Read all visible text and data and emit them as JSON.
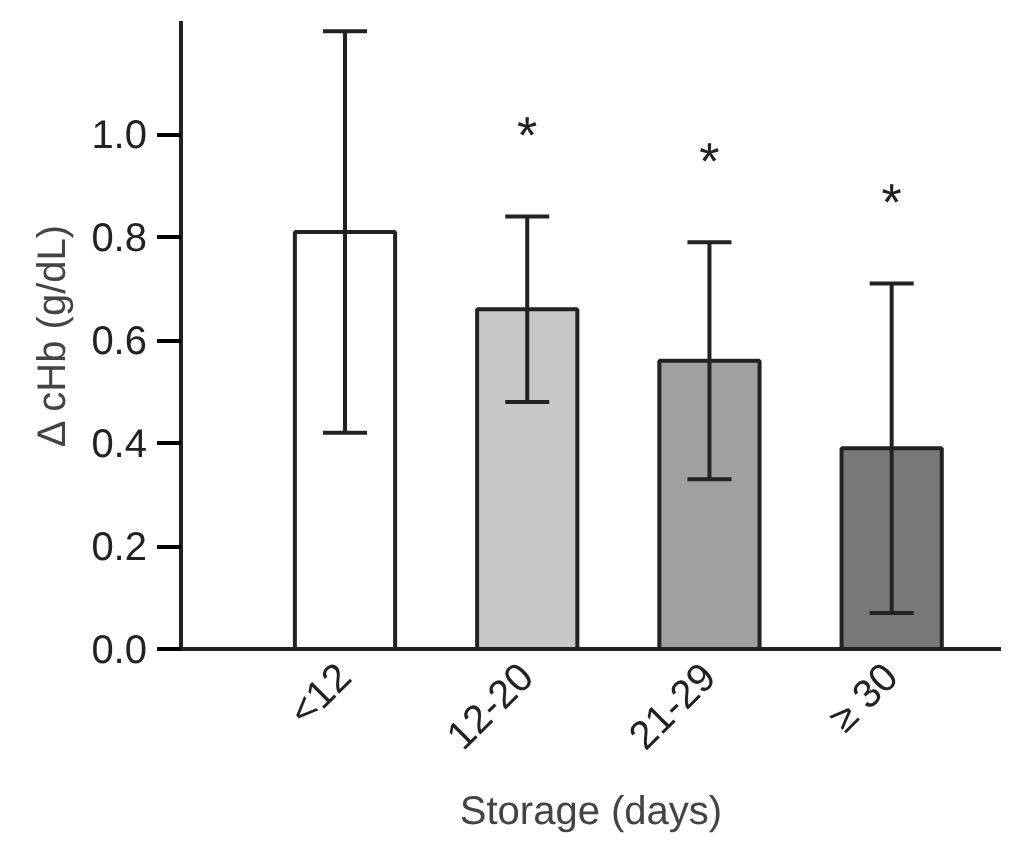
{
  "chart_data": {
    "type": "bar",
    "xlabel": "Storage (days)",
    "ylabel": "Δ cHb (g/dL)",
    "categories": [
      "<12",
      "12-20",
      "21-29",
      "≥ 30"
    ],
    "values": [
      0.81,
      0.66,
      0.56,
      0.39
    ],
    "colors": [
      "#ffffff",
      "#c8c8c8",
      "#a0a0a0",
      "#787878"
    ],
    "errors": [
      0.39,
      0.18,
      0.23,
      0.32
    ],
    "ylim": [
      0,
      1.22
    ],
    "yticks": [
      {
        "value": 0,
        "label": "0.0"
      },
      {
        "value": 0.2,
        "label": "0.2"
      },
      {
        "value": 0.4,
        "label": "0.4"
      },
      {
        "value": 0.6,
        "label": "0.6"
      },
      {
        "value": 0.8,
        "label": "0.8"
      },
      {
        "value": 1,
        "label": "1.0"
      }
    ],
    "grid": false,
    "annotations": [
      "*",
      "*",
      "*"
    ]
  }
}
